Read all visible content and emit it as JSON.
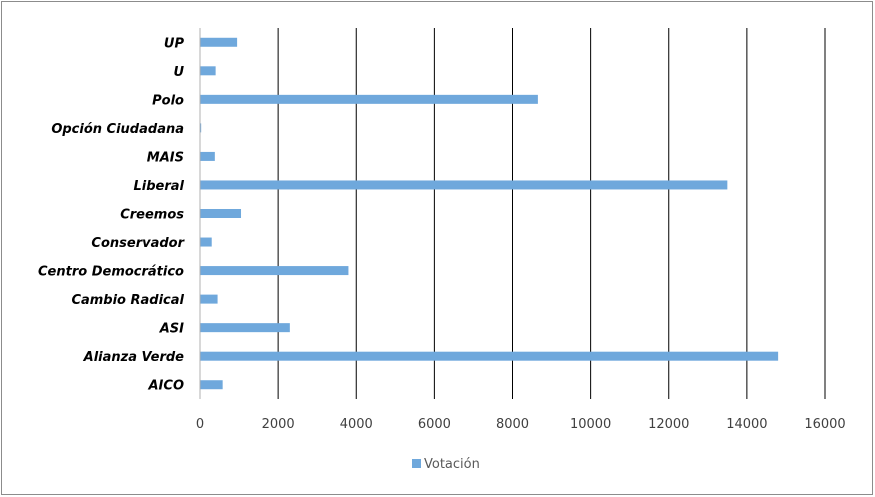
{
  "chart_data": {
    "type": "bar",
    "orientation": "horizontal",
    "categories": [
      "UP",
      "U",
      "Polo",
      "Opción Ciudadana",
      "MAIS",
      "Liberal",
      "Creemos",
      "Conservador",
      "Centro Democrático",
      "Cambio Radical",
      "ASI",
      "Alianza Verde",
      "AICO"
    ],
    "series": [
      {
        "name": "Votación",
        "color": "#6fa8dc",
        "values": [
          950,
          400,
          8650,
          30,
          380,
          13500,
          1050,
          300,
          3800,
          450,
          2300,
          14800,
          580
        ]
      }
    ],
    "xlim": [
      0,
      16000
    ],
    "xticks": [
      0,
      2000,
      4000,
      6000,
      8000,
      10000,
      12000,
      14000,
      16000
    ],
    "grid": true,
    "legend_position": "bottom"
  }
}
